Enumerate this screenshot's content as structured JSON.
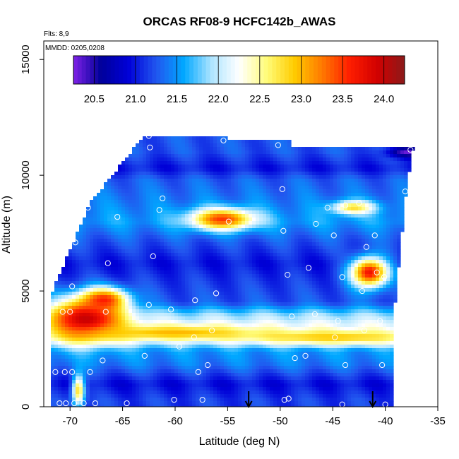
{
  "chart_data": {
    "type": "heatmap",
    "title": "ORCAS RF08-9 HCFC142b_AWAS",
    "xlabel": "Latitude (deg N)",
    "ylabel": "Altitude (m)",
    "xlim": [
      -72.5,
      -35
    ],
    "ylim": [
      0,
      15800
    ],
    "x_ticks": [
      -70,
      -65,
      -60,
      -55,
      -50,
      -45,
      -40,
      -35
    ],
    "y_ticks": [
      0,
      5000,
      10000,
      15000
    ],
    "notes": [
      "Flts: 8,9",
      "MMDD: 0205,0208"
    ],
    "colorbar": {
      "ticks": [
        20.5,
        21.0,
        21.5,
        22.0,
        22.5,
        23.0,
        23.5,
        24.0
      ],
      "range": [
        20.25,
        24.25
      ],
      "colors": [
        "#7f22e6",
        "#00009a",
        "#0000d8",
        "#2256ef",
        "#00a8ff",
        "#aee4ff",
        "#ffffff",
        "#fffc7a",
        "#ffcc00",
        "#ff7a00",
        "#ff1e00",
        "#d20000",
        "#8b1a1a"
      ]
    },
    "grid": false,
    "arrows_lat": [
      -53,
      -41.2
    ],
    "bands": [
      {
        "alt": 11000,
        "value": 21.2
      },
      {
        "alt": 10300,
        "value": 21.0
      },
      {
        "alt": 9800,
        "value": 21.3
      },
      {
        "alt": 8600,
        "value": 21.5
      },
      {
        "alt": 8000,
        "value": 21.6
      },
      {
        "alt": 7200,
        "value": 21.3
      },
      {
        "alt": 6200,
        "value": 21.0
      },
      {
        "alt": 5500,
        "value": 21.1
      },
      {
        "alt": 4500,
        "value": 21.2
      },
      {
        "alt": 4000,
        "value": 21.8
      },
      {
        "alt": 3600,
        "value": 22.1
      },
      {
        "alt": 3000,
        "value": 22.2
      },
      {
        "alt": 2400,
        "value": 21.5
      },
      {
        "alt": 1800,
        "value": 21.4
      },
      {
        "alt": 1000,
        "value": 21.0
      },
      {
        "alt": 300,
        "value": 21.2
      }
    ],
    "hotspots": [
      {
        "lat": -68.5,
        "alt": 3800,
        "value": 24.0,
        "rlat": 3.5,
        "ralt": 900
      },
      {
        "lat": -66.8,
        "alt": 4600,
        "value": 23.6,
        "rlat": 2.2,
        "ralt": 500
      },
      {
        "lat": -55.5,
        "alt": 8100,
        "value": 23.5,
        "rlat": 3.0,
        "ralt": 450
      },
      {
        "lat": -41.5,
        "alt": 5800,
        "value": 23.7,
        "rlat": 1.8,
        "ralt": 650
      },
      {
        "lat": -45,
        "alt": 3000,
        "value": 22.9,
        "rlat": 8.0,
        "ralt": 300
      },
      {
        "lat": -60,
        "alt": 3200,
        "value": 23.0,
        "rlat": 8.0,
        "ralt": 300
      },
      {
        "lat": -43,
        "alt": 8600,
        "value": 22.8,
        "rlat": 2.0,
        "ralt": 300
      },
      {
        "lat": -69.2,
        "alt": 700,
        "value": 22.8,
        "rlat": 0.6,
        "ralt": 700
      },
      {
        "lat": -37.8,
        "alt": 11000,
        "value": 20.3,
        "rlat": 2.0,
        "ralt": 250
      }
    ],
    "points": [
      {
        "lat": -71.0,
        "alt": 150
      },
      {
        "lat": -70.4,
        "alt": 150
      },
      {
        "lat": -69.6,
        "alt": 150
      },
      {
        "lat": -68.7,
        "alt": 150
      },
      {
        "lat": -67.6,
        "alt": 150
      },
      {
        "lat": -64.6,
        "alt": 150
      },
      {
        "lat": -60.1,
        "alt": 300
      },
      {
        "lat": -57.4,
        "alt": 300
      },
      {
        "lat": -49.6,
        "alt": 300
      },
      {
        "lat": -49.2,
        "alt": 350
      },
      {
        "lat": -44.1,
        "alt": 100
      },
      {
        "lat": -40.0,
        "alt": 100
      },
      {
        "lat": -71.4,
        "alt": 1500
      },
      {
        "lat": -70.5,
        "alt": 1500
      },
      {
        "lat": -69.8,
        "alt": 1500
      },
      {
        "lat": -68.1,
        "alt": 1500
      },
      {
        "lat": -66.9,
        "alt": 2000
      },
      {
        "lat": -62.9,
        "alt": 2200
      },
      {
        "lat": -57.8,
        "alt": 1500
      },
      {
        "lat": -56.9,
        "alt": 1800
      },
      {
        "lat": -48.6,
        "alt": 2100
      },
      {
        "lat": -47.6,
        "alt": 2200
      },
      {
        "lat": -43.8,
        "alt": 1800
      },
      {
        "lat": -40.3,
        "alt": 1800
      },
      {
        "lat": -59.6,
        "alt": 2600
      },
      {
        "lat": -58.2,
        "alt": 3000
      },
      {
        "lat": -56.5,
        "alt": 3300
      },
      {
        "lat": -44.8,
        "alt": 3000
      },
      {
        "lat": -42.0,
        "alt": 3300
      },
      {
        "lat": -40.5,
        "alt": 3700
      },
      {
        "lat": -70.7,
        "alt": 4100
      },
      {
        "lat": -70.0,
        "alt": 4100
      },
      {
        "lat": -66.6,
        "alt": 4100
      },
      {
        "lat": -62.5,
        "alt": 4400
      },
      {
        "lat": -60.4,
        "alt": 4200
      },
      {
        "lat": -58.1,
        "alt": 4600
      },
      {
        "lat": -56.1,
        "alt": 4900
      },
      {
        "lat": -48.9,
        "alt": 3900
      },
      {
        "lat": -46.7,
        "alt": 4000
      },
      {
        "lat": -44.5,
        "alt": 3700
      },
      {
        "lat": -69.8,
        "alt": 5200
      },
      {
        "lat": -66.4,
        "alt": 6200
      },
      {
        "lat": -62.1,
        "alt": 6500
      },
      {
        "lat": -49.3,
        "alt": 5700
      },
      {
        "lat": -47.3,
        "alt": 6000
      },
      {
        "lat": -44.1,
        "alt": 5600
      },
      {
        "lat": -42.2,
        "alt": 5000
      },
      {
        "lat": -40.8,
        "alt": 5800
      },
      {
        "lat": -40.1,
        "alt": 5600
      },
      {
        "lat": -38.3,
        "alt": 4800
      },
      {
        "lat": -69.5,
        "alt": 7100
      },
      {
        "lat": -65.5,
        "alt": 8200
      },
      {
        "lat": -61.5,
        "alt": 8500
      },
      {
        "lat": -54.9,
        "alt": 8000
      },
      {
        "lat": -49.7,
        "alt": 7600
      },
      {
        "lat": -46.6,
        "alt": 7900
      },
      {
        "lat": -44.9,
        "alt": 7400
      },
      {
        "lat": -41.8,
        "alt": 6900
      },
      {
        "lat": -41.0,
        "alt": 7400
      },
      {
        "lat": -68.3,
        "alt": 8600
      },
      {
        "lat": -61.2,
        "alt": 9000
      },
      {
        "lat": -49.8,
        "alt": 9400
      },
      {
        "lat": -45.5,
        "alt": 8600
      },
      {
        "lat": -43.8,
        "alt": 8700
      },
      {
        "lat": -42.5,
        "alt": 8800
      },
      {
        "lat": -38.1,
        "alt": 9300
      },
      {
        "lat": -67.9,
        "alt": 9600
      },
      {
        "lat": -67.6,
        "alt": 10800
      },
      {
        "lat": -62.4,
        "alt": 11200
      },
      {
        "lat": -62.5,
        "alt": 11700
      },
      {
        "lat": -55.4,
        "alt": 11500
      },
      {
        "lat": -50.2,
        "alt": 11300
      },
      {
        "lat": -37.6,
        "alt": 11100
      }
    ]
  }
}
